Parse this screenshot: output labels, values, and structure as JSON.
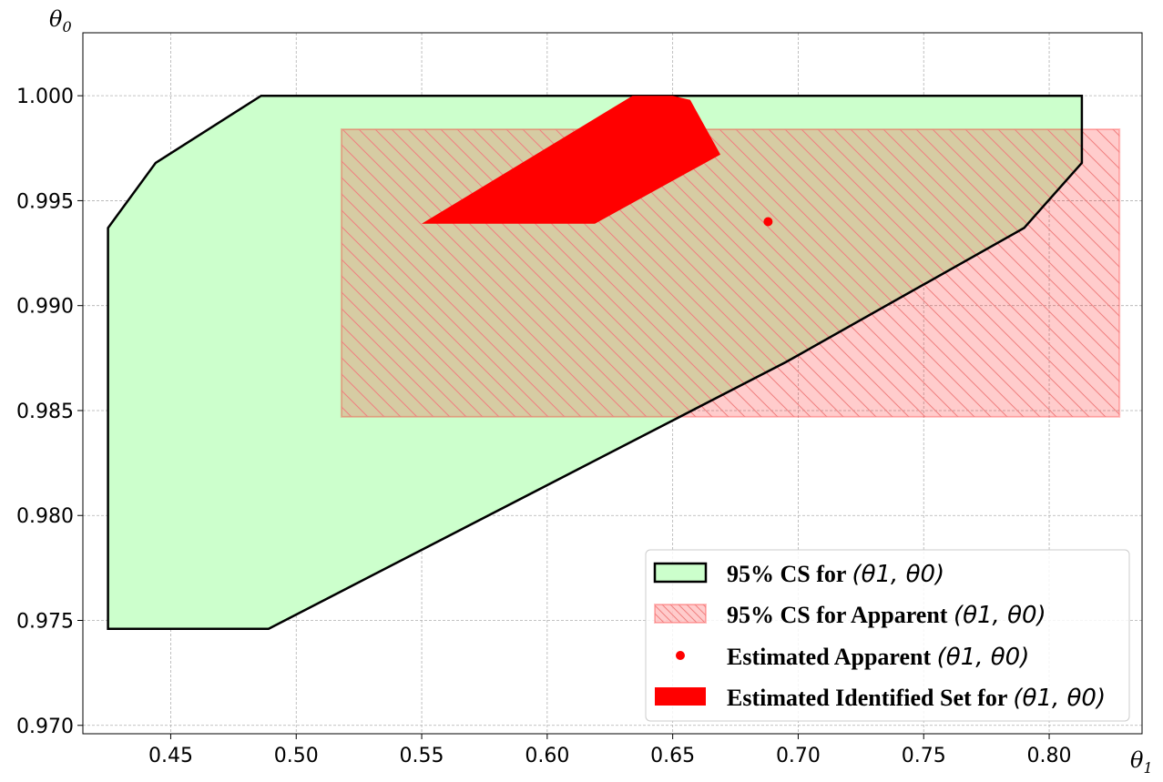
{
  "chart_data": {
    "type": "area",
    "xlabel": "θ1",
    "ylabel": "θ0",
    "xlim": [
      0.415,
      0.837
    ],
    "ylim": [
      0.9696,
      1.003
    ],
    "x_ticks": [
      0.45,
      0.5,
      0.55,
      0.6,
      0.65,
      0.7,
      0.75,
      0.8
    ],
    "x_tick_labels": [
      "0.45",
      "0.50",
      "0.55",
      "0.60",
      "0.65",
      "0.70",
      "0.75",
      "0.80"
    ],
    "y_ticks": [
      0.97,
      0.975,
      0.98,
      0.985,
      0.99,
      0.995,
      1.0
    ],
    "y_tick_labels": [
      "0.970",
      "0.975",
      "0.980",
      "0.985",
      "0.990",
      "0.995",
      "1.000"
    ],
    "grid": true,
    "legend_position": "lower-right",
    "series": [
      {
        "name": "95% CS for (θ1, θ0)",
        "kind": "polygon",
        "fill": "#ccffcc",
        "edge": "#000000",
        "points": [
          [
            0.425,
            0.9746
          ],
          [
            0.489,
            0.9746
          ],
          [
            0.695,
            0.9873
          ],
          [
            0.79,
            0.9937
          ],
          [
            0.813,
            0.9968
          ],
          [
            0.813,
            1.0
          ],
          [
            0.486,
            1.0
          ],
          [
            0.444,
            0.9968
          ],
          [
            0.425,
            0.9937
          ]
        ]
      },
      {
        "name": "95% CS for Apparent (θ1, θ0)",
        "kind": "hatched-rectangle",
        "fill": "#ff0000",
        "fill_opacity": 0.2,
        "points": [
          [
            0.518,
            0.9847
          ],
          [
            0.828,
            0.9847
          ],
          [
            0.828,
            0.9984
          ],
          [
            0.518,
            0.9984
          ]
        ]
      },
      {
        "name": "Estimated Apparent (θ1, θ0)",
        "kind": "point",
        "color": "#ff0000",
        "points": [
          [
            0.688,
            0.994
          ]
        ]
      },
      {
        "name": "Estimated Identified Set for (θ1, θ0)",
        "kind": "polygon",
        "fill": "#ff0000",
        "points": [
          [
            0.55,
            0.9939
          ],
          [
            0.619,
            0.9939
          ],
          [
            0.669,
            0.9972
          ],
          [
            0.657,
            0.9998
          ],
          [
            0.65,
            1.0
          ],
          [
            0.634,
            1.0
          ]
        ]
      }
    ],
    "legend": [
      {
        "label": "95% CS for ",
        "math": "(θ1, θ0)"
      },
      {
        "label": "95% CS for Apparent ",
        "math": "(θ1, θ0)"
      },
      {
        "label": "Estimated Apparent ",
        "math": "(θ1, θ0)"
      },
      {
        "label": "Estimated Identified Set for ",
        "math": "(θ1, θ0)"
      }
    ]
  }
}
